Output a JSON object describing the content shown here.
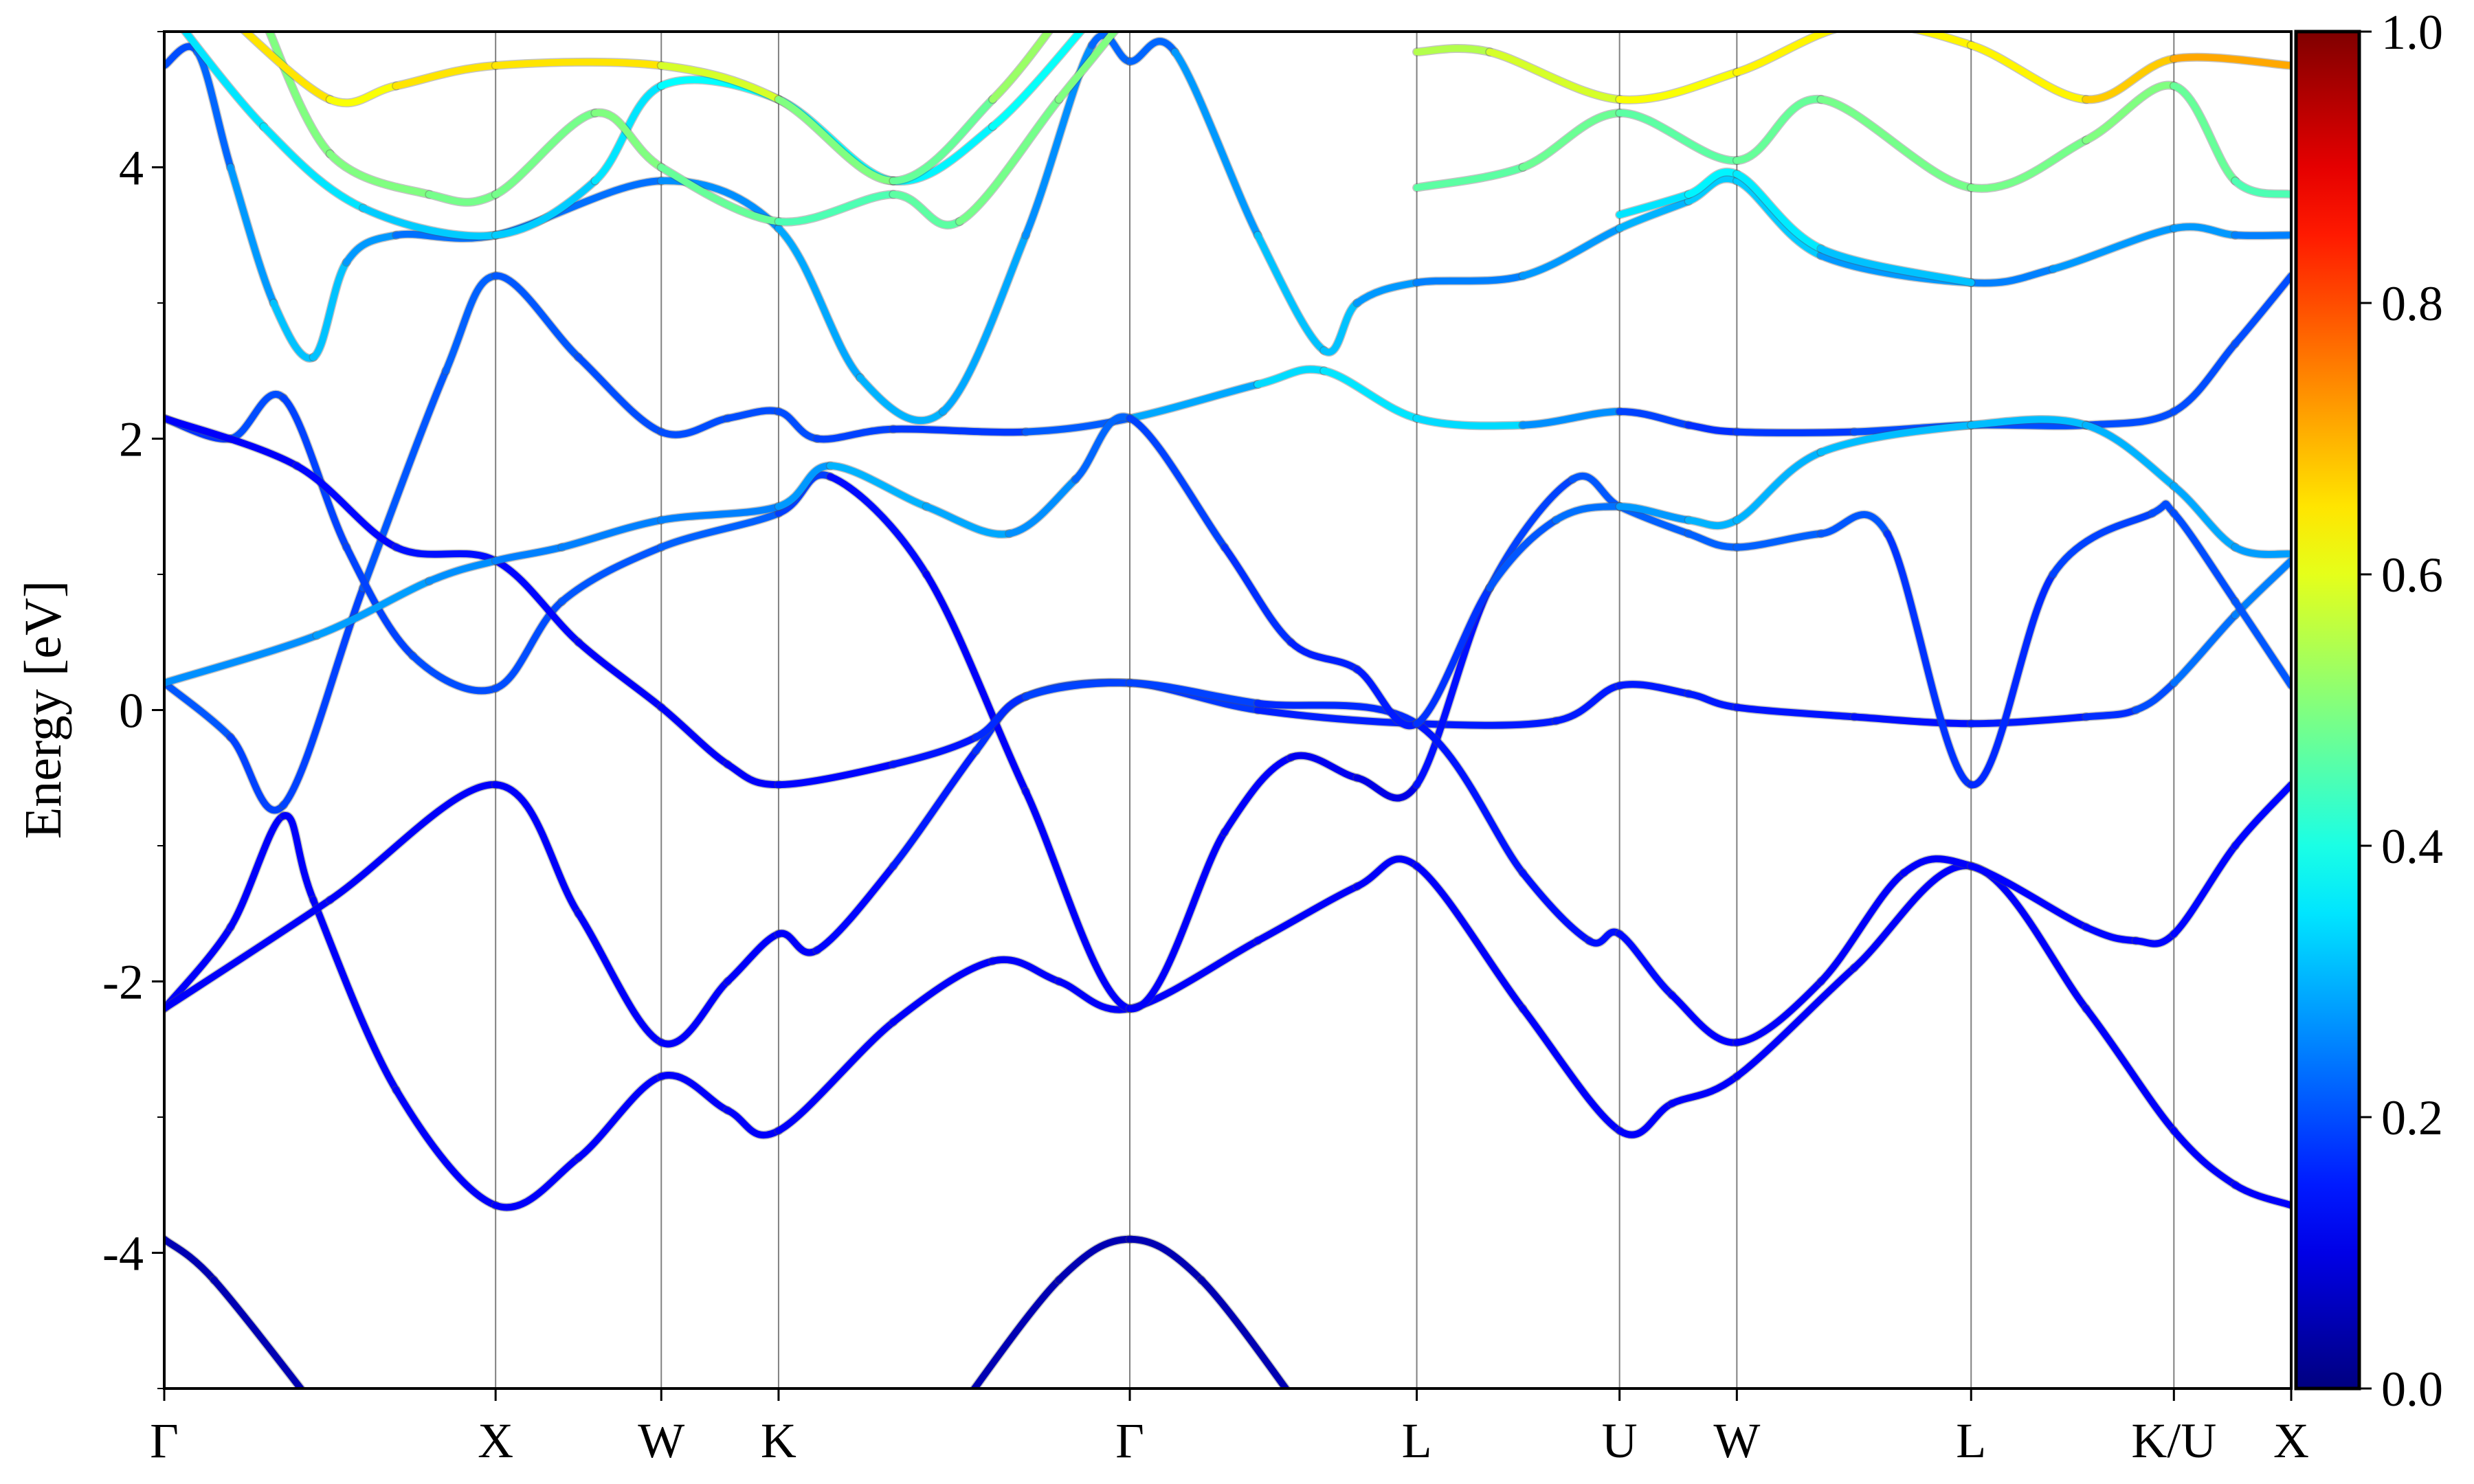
{
  "chart_data": {
    "type": "line",
    "title": "",
    "xlabel": "",
    "ylabel": "Energy [eV]",
    "ylim": [
      -5,
      5
    ],
    "xlim": [
      0,
      6.419
    ],
    "yticks": [
      {
        "value": -4,
        "label": "-4"
      },
      {
        "value": -2,
        "label": "-2"
      },
      {
        "value": 0,
        "label": "0"
      },
      {
        "value": 2,
        "label": "2"
      },
      {
        "value": 4,
        "label": "4"
      }
    ],
    "yminor": [
      -5,
      -3,
      -1,
      1,
      3,
      5
    ],
    "kpoints": [
      {
        "k": 0,
        "label": "Γ"
      },
      {
        "k": 1.0,
        "label": "X"
      },
      {
        "k": 1.5,
        "label": "W"
      },
      {
        "k": 1.854,
        "label": "K"
      },
      {
        "k": 2.914,
        "label": "Γ"
      },
      {
        "k": 3.78,
        "label": "L"
      },
      {
        "k": 4.392,
        "label": "U"
      },
      {
        "k": 4.746,
        "label": "W"
      },
      {
        "k": 5.453,
        "label": "L"
      },
      {
        "k": 6.065,
        "label": "K/U"
      },
      {
        "k": 6.419,
        "label": "X"
      }
    ],
    "colorbar": {
      "colormap": "jet",
      "range": [
        0,
        1
      ],
      "ticks": [
        {
          "value": 0.0,
          "label": "0.0"
        },
        {
          "value": 0.2,
          "label": "0.2"
        },
        {
          "value": 0.4,
          "label": "0.4"
        },
        {
          "value": 0.6,
          "label": "0.6"
        },
        {
          "value": 0.8,
          "label": "0.8"
        },
        {
          "value": 1.0,
          "label": "1.0"
        }
      ]
    },
    "grid_vertical_color": "#808080",
    "bands_point_format": "[k, energy_eV, weight]",
    "bands": [
      [
        [
          0,
          -3.9,
          0.05
        ],
        [
          0.15,
          -4.2,
          0.05
        ],
        [
          0.46,
          -5.15,
          0.05
        ]
      ],
      [
        [
          2.4,
          -5.15,
          0.05
        ],
        [
          2.7,
          -4.2,
          0.05
        ],
        [
          2.914,
          -3.9,
          0.05
        ],
        [
          3.13,
          -4.2,
          0.05
        ],
        [
          3.43,
          -5.15,
          0.05
        ]
      ],
      [
        [
          0,
          -2.2,
          0.12
        ],
        [
          0.2,
          -1.6,
          0.12
        ],
        [
          0.36,
          -0.78,
          0.12
        ],
        [
          0.45,
          -1.4,
          0.12
        ],
        [
          0.7,
          -2.8,
          0.12
        ],
        [
          1.0,
          -3.65,
          0.12
        ],
        [
          1.25,
          -3.3,
          0.12
        ],
        [
          1.5,
          -2.7,
          0.12
        ],
        [
          1.7,
          -2.95,
          0.12
        ],
        [
          1.854,
          -3.1,
          0.12
        ],
        [
          2.2,
          -2.3,
          0.12
        ],
        [
          2.5,
          -1.85,
          0.12
        ],
        [
          2.7,
          -2.0,
          0.12
        ],
        [
          2.914,
          -2.2,
          0.12
        ],
        [
          3.3,
          -1.7,
          0.12
        ],
        [
          3.6,
          -1.3,
          0.12
        ],
        [
          3.78,
          -1.15,
          0.12
        ],
        [
          4.1,
          -2.2,
          0.12
        ],
        [
          4.392,
          -3.1,
          0.12
        ],
        [
          4.55,
          -2.9,
          0.12
        ],
        [
          4.746,
          -2.7,
          0.12
        ],
        [
          5.1,
          -1.9,
          0.12
        ],
        [
          5.453,
          -1.15,
          0.12
        ],
        [
          5.8,
          -2.2,
          0.12
        ],
        [
          6.065,
          -3.1,
          0.12
        ],
        [
          6.25,
          -3.5,
          0.12
        ],
        [
          6.419,
          -3.65,
          0.12
        ]
      ],
      [
        [
          0,
          -2.2,
          0.12
        ],
        [
          0.5,
          -1.4,
          0.12
        ],
        [
          1.0,
          -0.55,
          0.12
        ],
        [
          1.25,
          -1.5,
          0.12
        ],
        [
          1.5,
          -2.45,
          0.12
        ],
        [
          1.7,
          -2.0,
          0.12
        ],
        [
          1.854,
          -1.65,
          0.12
        ],
        [
          1.97,
          -1.77,
          0.12
        ],
        [
          2.2,
          -1.15,
          0.14
        ],
        [
          2.45,
          -0.3,
          0.16
        ],
        [
          2.6,
          0.1,
          0.18
        ],
        [
          2.914,
          0.2,
          0.2
        ],
        [
          3.3,
          0.0,
          0.16
        ],
        [
          3.78,
          -0.1,
          0.15
        ],
        [
          4.2,
          -0.08,
          0.15
        ],
        [
          4.392,
          0.18,
          0.15
        ],
        [
          4.6,
          0.12,
          0.15
        ],
        [
          4.746,
          0.02,
          0.15
        ],
        [
          5.1,
          -0.05,
          0.14
        ],
        [
          5.453,
          -0.1,
          0.14
        ],
        [
          5.8,
          -0.05,
          0.16
        ],
        [
          5.95,
          0.0,
          0.18
        ],
        [
          6.065,
          0.2,
          0.22
        ],
        [
          6.25,
          0.7,
          0.25
        ],
        [
          6.419,
          1.1,
          0.25
        ]
      ],
      [
        [
          0,
          0.2,
          0.22
        ],
        [
          0.2,
          -0.2,
          0.2
        ],
        [
          0.36,
          -0.7,
          0.18
        ],
        [
          0.6,
          0.9,
          0.2
        ],
        [
          0.85,
          2.5,
          0.22
        ],
        [
          1.0,
          3.2,
          0.22
        ],
        [
          1.25,
          2.6,
          0.2
        ],
        [
          1.5,
          2.05,
          0.2
        ],
        [
          1.7,
          2.15,
          0.2
        ],
        [
          1.854,
          2.2,
          0.2
        ],
        [
          1.97,
          2.0,
          0.2
        ],
        [
          2.2,
          2.07,
          0.18
        ],
        [
          2.6,
          2.05,
          0.18
        ],
        [
          2.914,
          2.15,
          0.25
        ],
        [
          3.3,
          2.4,
          0.33
        ],
        [
          3.5,
          2.5,
          0.35
        ],
        [
          3.78,
          2.15,
          0.35
        ],
        [
          4.1,
          2.1,
          0.33
        ],
        [
          4.392,
          2.2,
          0.2
        ],
        [
          4.6,
          2.1,
          0.18
        ],
        [
          4.746,
          2.05,
          0.16
        ],
        [
          5.1,
          2.05,
          0.2
        ],
        [
          5.453,
          2.1,
          0.2
        ],
        [
          5.8,
          2.1,
          0.2
        ],
        [
          6.065,
          2.2,
          0.2
        ],
        [
          6.25,
          2.7,
          0.2
        ],
        [
          6.419,
          3.2,
          0.2
        ]
      ],
      [
        [
          0,
          2.15,
          0.15
        ],
        [
          0.2,
          2.0,
          0.2
        ],
        [
          0.36,
          2.3,
          0.2
        ],
        [
          0.55,
          1.2,
          0.18
        ],
        [
          0.75,
          0.4,
          0.2
        ],
        [
          1.0,
          0.16,
          0.2
        ],
        [
          1.2,
          0.8,
          0.2
        ],
        [
          1.5,
          1.2,
          0.22
        ],
        [
          1.854,
          1.45,
          0.22
        ],
        [
          2.01,
          1.72,
          0.15
        ],
        [
          2.3,
          1.0,
          0.12
        ],
        [
          2.6,
          -0.6,
          0.12
        ],
        [
          2.914,
          -2.2,
          0.12
        ],
        [
          3.2,
          -0.9,
          0.12
        ],
        [
          3.4,
          -0.35,
          0.12
        ],
        [
          3.6,
          -0.5,
          0.1
        ],
        [
          3.78,
          -0.55,
          0.1
        ],
        [
          4.0,
          0.9,
          0.18
        ],
        [
          4.25,
          1.7,
          0.2
        ],
        [
          4.392,
          1.5,
          0.22
        ],
        [
          4.6,
          1.3,
          0.22
        ],
        [
          4.746,
          1.2,
          0.22
        ],
        [
          5.0,
          1.3,
          0.22
        ],
        [
          5.2,
          1.3,
          0.2
        ],
        [
          5.453,
          -0.55,
          0.15
        ],
        [
          5.7,
          1.0,
          0.18
        ],
        [
          6.0,
          1.45,
          0.2
        ],
        [
          6.065,
          1.45,
          0.2
        ],
        [
          6.25,
          0.8,
          0.2
        ],
        [
          6.419,
          0.18,
          0.22
        ]
      ],
      [
        [
          0,
          2.15,
          0.12
        ],
        [
          0.4,
          1.8,
          0.12
        ],
        [
          0.7,
          1.2,
          0.14
        ],
        [
          1.0,
          1.1,
          0.14
        ],
        [
          1.25,
          0.5,
          0.12
        ],
        [
          1.5,
          0.02,
          0.12
        ],
        [
          1.7,
          -0.4,
          0.12
        ],
        [
          1.854,
          -0.55,
          0.12
        ],
        [
          2.2,
          -0.4,
          0.14
        ],
        [
          2.45,
          -0.2,
          0.15
        ],
        [
          2.6,
          0.1,
          0.18
        ],
        [
          2.914,
          0.2,
          0.2
        ],
        [
          3.3,
          0.05,
          0.18
        ],
        [
          3.78,
          -0.1,
          0.15
        ],
        [
          4.1,
          -1.2,
          0.14
        ],
        [
          4.3,
          -1.7,
          0.14
        ],
        [
          4.392,
          -1.65,
          0.14
        ],
        [
          4.55,
          -2.1,
          0.13
        ],
        [
          4.746,
          -2.45,
          0.12
        ],
        [
          5.0,
          -2.0,
          0.12
        ],
        [
          5.25,
          -1.2,
          0.12
        ],
        [
          5.453,
          -1.15,
          0.12
        ],
        [
          5.8,
          -1.6,
          0.13
        ],
        [
          5.95,
          -1.7,
          0.13
        ],
        [
          6.065,
          -1.65,
          0.13
        ],
        [
          6.25,
          -1.0,
          0.13
        ],
        [
          6.419,
          -0.55,
          0.13
        ]
      ],
      [
        [
          0,
          0.2,
          0.25
        ],
        [
          0.46,
          0.55,
          0.28
        ],
        [
          0.8,
          0.95,
          0.28
        ],
        [
          1.0,
          1.1,
          0.25
        ],
        [
          1.2,
          1.2,
          0.25
        ],
        [
          1.5,
          1.4,
          0.25
        ],
        [
          1.854,
          1.5,
          0.25
        ],
        [
          2.01,
          1.8,
          0.3
        ],
        [
          2.3,
          1.5,
          0.3
        ],
        [
          2.55,
          1.3,
          0.28
        ],
        [
          2.75,
          1.7,
          0.25
        ],
        [
          2.914,
          2.15,
          0.2
        ],
        [
          3.2,
          1.2,
          0.18
        ],
        [
          3.4,
          0.5,
          0.16
        ],
        [
          3.6,
          0.3,
          0.15
        ],
        [
          3.78,
          -0.1,
          0.15
        ],
        [
          4.0,
          0.9,
          0.2
        ],
        [
          4.2,
          1.4,
          0.22
        ],
        [
          4.392,
          1.5,
          0.25
        ],
        [
          4.6,
          1.4,
          0.3
        ],
        [
          4.746,
          1.4,
          0.3
        ],
        [
          5.0,
          1.9,
          0.3
        ],
        [
          5.453,
          2.1,
          0.32
        ],
        [
          5.8,
          2.1,
          0.3
        ],
        [
          6.065,
          1.65,
          0.3
        ],
        [
          6.25,
          1.2,
          0.28
        ],
        [
          6.419,
          1.15,
          0.28
        ]
      ],
      [
        [
          0,
          4.75,
          0.2
        ],
        [
          0.1,
          4.85,
          0.2
        ],
        [
          0.2,
          4.0,
          0.25
        ],
        [
          0.33,
          3.0,
          0.3
        ],
        [
          0.45,
          2.6,
          0.33
        ],
        [
          0.55,
          3.3,
          0.3
        ],
        [
          0.7,
          3.5,
          0.25
        ],
        [
          1.0,
          3.5,
          0.22
        ],
        [
          1.5,
          3.9,
          0.25
        ],
        [
          1.854,
          3.55,
          0.28
        ],
        [
          2.1,
          2.45,
          0.3
        ],
        [
          2.35,
          2.2,
          0.3
        ],
        [
          2.6,
          3.5,
          0.28
        ],
        [
          2.8,
          4.9,
          0.25
        ],
        [
          2.914,
          4.78,
          0.2
        ],
        [
          3.05,
          4.85,
          0.25
        ],
        [
          3.3,
          3.5,
          0.3
        ],
        [
          3.5,
          2.65,
          0.33
        ],
        [
          3.6,
          3.0,
          0.3
        ],
        [
          3.78,
          3.15,
          0.25
        ],
        [
          4.1,
          3.2,
          0.25
        ],
        [
          4.392,
          3.55,
          0.3
        ],
        [
          4.6,
          3.75,
          0.3
        ],
        [
          4.746,
          3.9,
          0.35
        ],
        [
          5.0,
          3.35,
          0.3
        ],
        [
          5.453,
          3.15,
          0.25
        ],
        [
          5.7,
          3.25,
          0.25
        ],
        [
          6.065,
          3.55,
          0.3
        ],
        [
          6.25,
          3.5,
          0.25
        ],
        [
          6.419,
          3.5,
          0.25
        ]
      ],
      [
        [
          0,
          5.2,
          0.35
        ],
        [
          0.3,
          4.3,
          0.35
        ],
        [
          0.6,
          3.7,
          0.35
        ],
        [
          1.0,
          3.5,
          0.3
        ],
        [
          1.3,
          3.9,
          0.35
        ],
        [
          1.5,
          4.6,
          0.35
        ],
        [
          1.854,
          4.5,
          0.4
        ],
        [
          2.2,
          3.9,
          0.35
        ],
        [
          2.5,
          4.3,
          0.38
        ],
        [
          2.8,
          5.1,
          0.38
        ]
      ],
      [
        [
          0.3,
          5.1,
          0.5
        ],
        [
          0.5,
          4.1,
          0.5
        ],
        [
          0.8,
          3.8,
          0.5
        ],
        [
          1.0,
          3.8,
          0.48
        ],
        [
          1.3,
          4.4,
          0.5
        ],
        [
          1.5,
          4.0,
          0.5
        ],
        [
          1.854,
          3.6,
          0.45
        ],
        [
          2.2,
          3.8,
          0.45
        ],
        [
          2.4,
          3.6,
          0.48
        ],
        [
          2.7,
          4.5,
          0.5
        ],
        [
          2.9,
          5.1,
          0.5
        ]
      ],
      [
        [
          0.2,
          5.1,
          0.68
        ],
        [
          0.5,
          4.5,
          0.62
        ],
        [
          0.7,
          4.6,
          0.62
        ],
        [
          1.0,
          4.75,
          0.68
        ],
        [
          1.5,
          4.75,
          0.62
        ],
        [
          1.854,
          4.5,
          0.55
        ],
        [
          2.2,
          3.9,
          0.45
        ],
        [
          2.5,
          4.5,
          0.5
        ],
        [
          2.7,
          5.1,
          0.55
        ]
      ],
      [
        [
          3.78,
          3.85,
          0.45
        ],
        [
          4.1,
          4.0,
          0.48
        ],
        [
          4.392,
          4.4,
          0.48
        ],
        [
          4.746,
          4.05,
          0.45
        ],
        [
          5.0,
          4.5,
          0.5
        ],
        [
          5.453,
          3.85,
          0.48
        ],
        [
          5.8,
          4.2,
          0.5
        ],
        [
          6.065,
          4.6,
          0.5
        ],
        [
          6.25,
          3.9,
          0.45
        ],
        [
          6.419,
          3.8,
          0.45
        ]
      ],
      [
        [
          3.78,
          4.85,
          0.55
        ],
        [
          4.0,
          4.85,
          0.55
        ],
        [
          4.392,
          4.5,
          0.62
        ],
        [
          4.746,
          4.7,
          0.62
        ],
        [
          5.1,
          5.05,
          0.65
        ],
        [
          5.453,
          4.9,
          0.62
        ],
        [
          5.8,
          4.5,
          0.65
        ],
        [
          6.065,
          4.8,
          0.7
        ],
        [
          6.419,
          4.75,
          0.72
        ]
      ],
      [
        [
          4.392,
          3.65,
          0.35
        ],
        [
          4.6,
          3.8,
          0.35
        ],
        [
          4.746,
          3.95,
          0.38
        ],
        [
          5.0,
          3.4,
          0.33
        ],
        [
          5.453,
          3.15,
          0.3
        ]
      ]
    ]
  }
}
